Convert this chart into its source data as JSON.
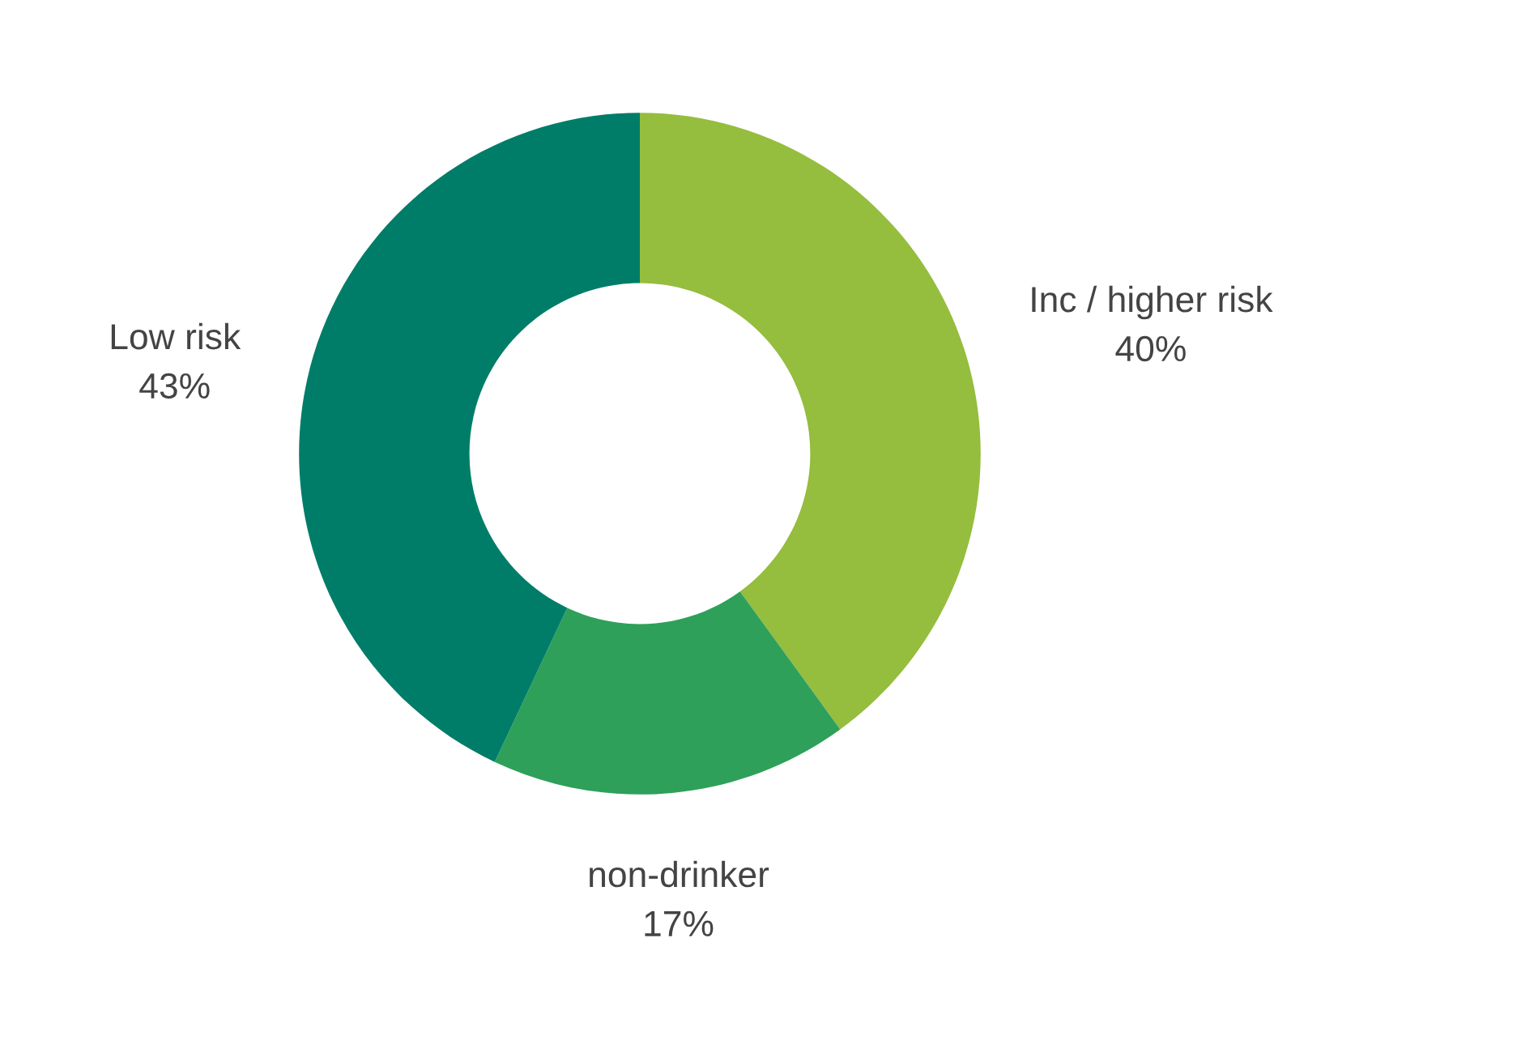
{
  "chart_data": {
    "type": "donut",
    "categories": [
      "Inc / higher risk",
      "non-drinker",
      "Low risk"
    ],
    "values": [
      40,
      17,
      43
    ],
    "value_labels": [
      "40%",
      "17%",
      "43%"
    ],
    "colors": [
      "#95bd3e",
      "#2ea05a",
      "#007d68"
    ],
    "legend": false
  }
}
